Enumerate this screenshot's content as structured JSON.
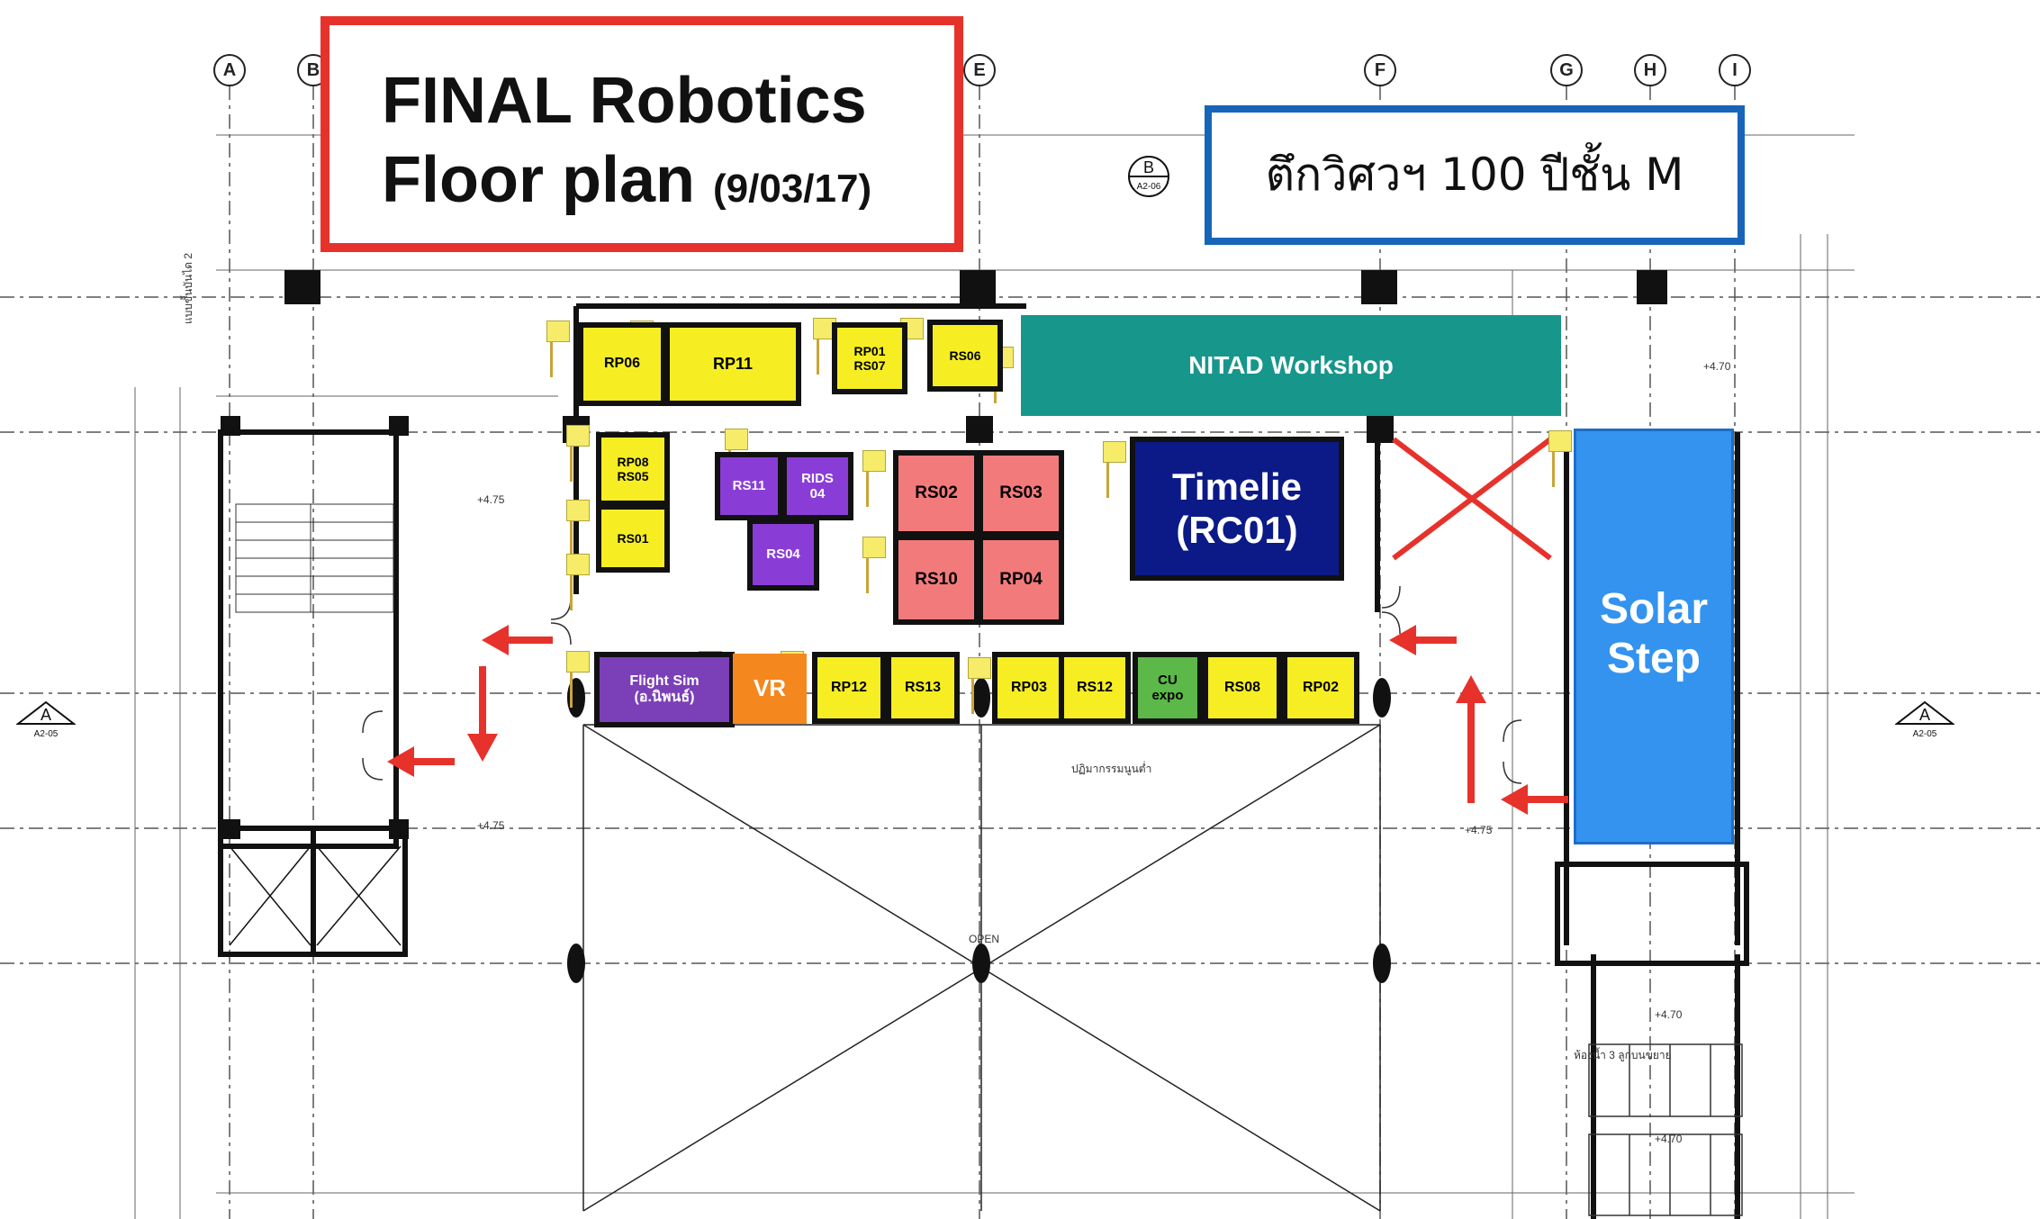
{
  "title": {
    "line1": "FINAL Robotics",
    "line2": "Floor plan",
    "date": "(9/03/17)"
  },
  "subtitle": "ตึกวิศวฯ 100 ปีชั้น M",
  "grid_axes": [
    "A",
    "B",
    "E",
    "F",
    "G",
    "H",
    "I"
  ],
  "section_marker": {
    "left_letter": "A",
    "left_sheet": "A2-05",
    "right_letter": "A",
    "right_sheet": "A2-05",
    "b_letter": "B",
    "b_sheet": "A2-06"
  },
  "plan_notes": {
    "open": "OPEN",
    "level1": "+4.75",
    "level2": "+4.70",
    "toilet": "ห้องน้ำ 3 ลูกบนขยาย",
    "stage_note": "ปฏิมากรรมนูนต่ำ",
    "stair_note": "แบบขั้นบันได 2"
  },
  "rooms": [
    {
      "id": "RP06",
      "label": "RP06",
      "color": "#f6ee22"
    },
    {
      "id": "RP11",
      "label": "RP11",
      "color": "#f6ee22"
    },
    {
      "id": "RP01RP07",
      "label": "RP01\nRS07",
      "color": "#f6ee22"
    },
    {
      "id": "RS06",
      "label": "RS06",
      "color": "#f6ee22"
    },
    {
      "id": "NITAD",
      "label": "NITAD Workshop",
      "color": "#17968b"
    },
    {
      "id": "RP08RS05",
      "label": "RP08\nRS05",
      "color": "#f6ee22"
    },
    {
      "id": "RS01",
      "label": "RS01",
      "color": "#f6ee22"
    },
    {
      "id": "RS11",
      "label": "RS11",
      "color": "#8a3dd6"
    },
    {
      "id": "RIDS04",
      "label": "RIDS\n04",
      "color": "#8a3dd6"
    },
    {
      "id": "RS04",
      "label": "RS04",
      "color": "#8a3dd6"
    },
    {
      "id": "RS02",
      "label": "RS02",
      "color": "#f37a7b"
    },
    {
      "id": "RS03",
      "label": "RS03",
      "color": "#f37a7b"
    },
    {
      "id": "RS10",
      "label": "RS10",
      "color": "#f37a7b"
    },
    {
      "id": "RP04",
      "label": "RP04",
      "color": "#f37a7b"
    },
    {
      "id": "Timelie",
      "label": "Timelie\n(RC01)",
      "color": "#0b1a86"
    },
    {
      "id": "FlightSim",
      "label": "Flight Sim\n(อ.นิพนธ์)",
      "color": "#7b3fb8"
    },
    {
      "id": "VR",
      "label": "VR",
      "color": "#f4871e"
    },
    {
      "id": "RP12",
      "label": "RP12",
      "color": "#f6ee22"
    },
    {
      "id": "RS13",
      "label": "RS13",
      "color": "#f6ee22"
    },
    {
      "id": "RP03",
      "label": "RP03",
      "color": "#f6ee22"
    },
    {
      "id": "RS12",
      "label": "RS12",
      "color": "#f6ee22"
    },
    {
      "id": "CUexpo",
      "label": "CU\nexpo",
      "color": "#5cb848"
    },
    {
      "id": "RS08",
      "label": "RS08",
      "color": "#f6ee22"
    },
    {
      "id": "RP02",
      "label": "RP02",
      "color": "#f6ee22"
    },
    {
      "id": "SolarStep",
      "label": "Solar\nStep",
      "color": "#3393ef"
    }
  ]
}
